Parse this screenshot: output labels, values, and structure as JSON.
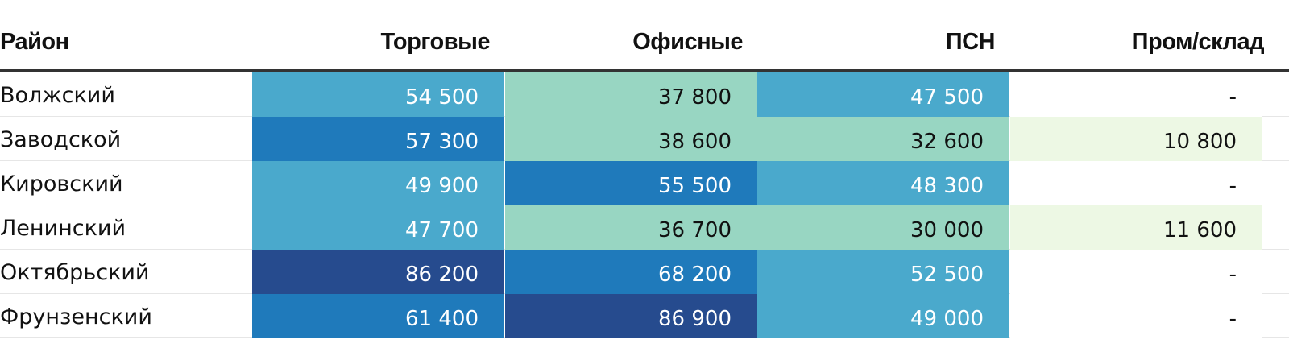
{
  "chart_data": {
    "type": "table",
    "columns": [
      "Район",
      "Торговые",
      "Офисные",
      "ПСН",
      "Пром/склад"
    ],
    "rows": [
      {
        "label": "Волжский",
        "values": [
          54500,
          37800,
          47500,
          null
        ],
        "display": [
          "54 500",
          "37 800",
          "47 500",
          "-"
        ]
      },
      {
        "label": "Заводской",
        "values": [
          57300,
          38600,
          32600,
          10800
        ],
        "display": [
          "57 300",
          "38 600",
          "32 600",
          "10 800"
        ]
      },
      {
        "label": "Кировский",
        "values": [
          49900,
          55500,
          48300,
          null
        ],
        "display": [
          "49 900",
          "55 500",
          "48 300",
          "-"
        ]
      },
      {
        "label": "Ленинский",
        "values": [
          47700,
          36700,
          30000,
          11600
        ],
        "display": [
          "47 700",
          "36 700",
          "30 000",
          "11 600"
        ]
      },
      {
        "label": "Октябрьский",
        "values": [
          86200,
          68200,
          52500,
          null
        ],
        "display": [
          "86 200",
          "68 200",
          "52 500",
          "-"
        ]
      },
      {
        "label": "Фрунзенский",
        "values": [
          61400,
          86900,
          49000,
          null
        ],
        "display": [
          "61 400",
          "86 900",
          "49 000",
          "-"
        ]
      }
    ],
    "color_scale": [
      {
        "min": 0,
        "max": 20000,
        "bg": "#edf8e4",
        "fg": "#111111"
      },
      {
        "min": 20000,
        "max": 45000,
        "bg": "#98d6c2",
        "fg": "#111111"
      },
      {
        "min": 45000,
        "max": 55500,
        "bg": "#4aa9cc",
        "fg": "#ffffff"
      },
      {
        "min": 55500,
        "max": 75000,
        "bg": "#1f7abb",
        "fg": "#ffffff"
      },
      {
        "min": 75000,
        "max": 100000,
        "bg": "#264b8e",
        "fg": "#ffffff"
      }
    ],
    "missing_color": "#ffffff",
    "missing_text_color": "#111111"
  }
}
